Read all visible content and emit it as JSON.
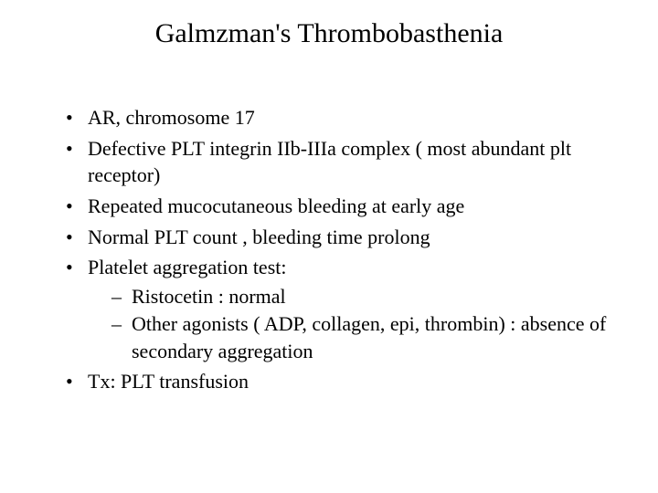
{
  "title": "Galmzman's Thrombobasthenia",
  "bullets": [
    {
      "text": "AR, chromosome 17"
    },
    {
      "text": "Defective PLT integrin IIb-IIIa complex ( most abundant plt receptor)"
    },
    {
      "text": "Repeated mucocutaneous bleeding at early age"
    },
    {
      "text": "Normal PLT count , bleeding time prolong"
    },
    {
      "text": "Platelet aggregation test:",
      "sub": [
        "Ristocetin : normal",
        "Other agonists ( ADP, collagen, epi, thrombin) : absence of secondary aggregation"
      ]
    },
    {
      "text": "Tx: PLT transfusion"
    }
  ],
  "colors": {
    "background": "#ffffff",
    "text": "#000000"
  },
  "typography": {
    "title_fontsize_pt": 30,
    "body_fontsize_pt": 22,
    "font_family": "Times New Roman"
  }
}
